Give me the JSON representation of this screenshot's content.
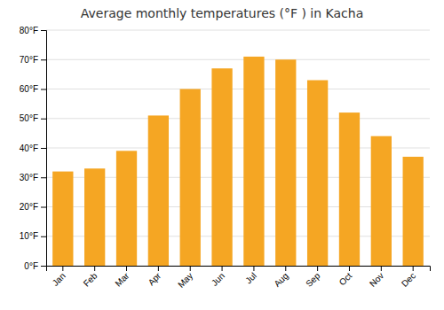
{
  "chart_data": {
    "type": "bar",
    "title": "Average monthly temperatures (°F ) in Kacha",
    "categories": [
      "Jan",
      "Feb",
      "Mar",
      "Apr",
      "May",
      "Jun",
      "Jul",
      "Aug",
      "Sep",
      "Oct",
      "Nov",
      "Dec"
    ],
    "values": [
      32,
      33,
      39,
      51,
      60,
      67,
      71,
      70,
      63,
      52,
      44,
      37
    ],
    "color": "#F5A623",
    "ylim": [
      0,
      80
    ],
    "yticks": [
      {
        "value": 0,
        "label": "0°F"
      },
      {
        "value": 10,
        "label": "10°F"
      },
      {
        "value": 20,
        "label": "20°F"
      },
      {
        "value": 30,
        "label": "30°F"
      },
      {
        "value": 40,
        "label": "40°F"
      },
      {
        "value": 50,
        "label": "50°F"
      },
      {
        "value": 60,
        "label": "60°F"
      },
      {
        "value": 70,
        "label": "70°F"
      },
      {
        "value": 80,
        "label": "80°F"
      }
    ],
    "grid": true
  }
}
